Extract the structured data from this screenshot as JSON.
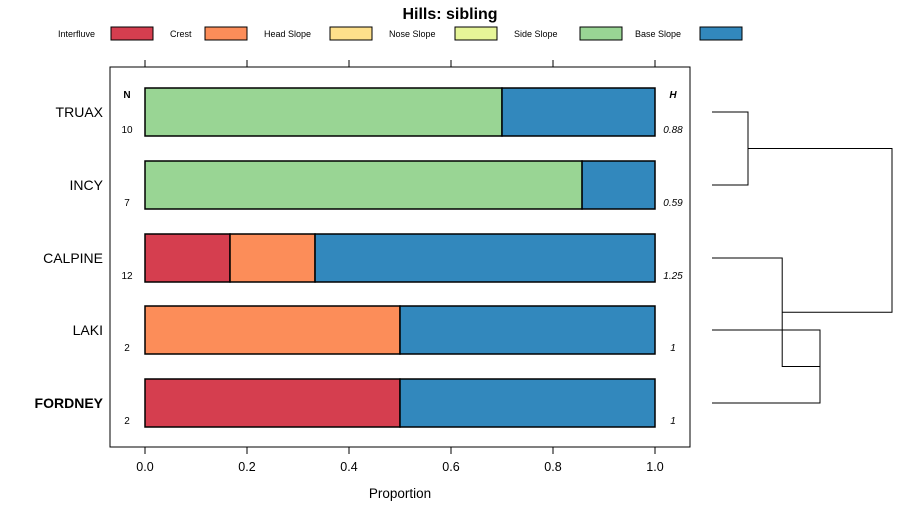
{
  "chart_data": {
    "type": "bar",
    "orientation": "horizontal",
    "stacked": true,
    "title": "Hills: sibling",
    "xlabel": "Proportion",
    "ylabel": "",
    "xlim": [
      0,
      1
    ],
    "xticks": [
      "0.0",
      "0.2",
      "0.4",
      "0.6",
      "0.8",
      "1.0"
    ],
    "categories": [
      "TRUAX",
      "INCY",
      "CALPINE",
      "LAKI",
      "FORDNEY"
    ],
    "highlight_category": "FORDNEY",
    "series": [
      {
        "name": "Interfluve",
        "color": "#D53E4F",
        "values": [
          0,
          0,
          0.1667,
          0,
          0.5
        ]
      },
      {
        "name": "Crest",
        "color": "#FC8D59",
        "values": [
          0,
          0,
          0.1667,
          0.5,
          0
        ]
      },
      {
        "name": "Head Slope",
        "color": "#FEE08B",
        "values": [
          0,
          0,
          0,
          0,
          0
        ]
      },
      {
        "name": "Nose Slope",
        "color": "#E6F598",
        "values": [
          0,
          0,
          0,
          0,
          0
        ]
      },
      {
        "name": "Side Slope",
        "color": "#99D594",
        "values": [
          0.7,
          0.857,
          0,
          0,
          0
        ]
      },
      {
        "name": "Base Slope",
        "color": "#3288BD",
        "values": [
          0.3,
          0.143,
          0.6667,
          0.5,
          0.5
        ]
      }
    ],
    "n_header": "N",
    "h_header": "H",
    "n_values": [
      "10",
      "7",
      "12",
      "2",
      "2"
    ],
    "h_values": [
      "0.88",
      "0.59",
      "1.25",
      "1",
      "1"
    ],
    "legend_position": "top",
    "dendrogram": {
      "side": "right",
      "merges": [
        {
          "left": "TRUAX",
          "right": "INCY",
          "height": 0.2
        },
        {
          "left": "LAKI",
          "right": "FORDNEY",
          "height": 0.6
        },
        {
          "left": "CALPINE",
          "right": "LAKI+FORDNEY",
          "height": 0.39
        },
        {
          "left": "TRUAX+INCY",
          "right": "CALPINE+LAKI+FORDNEY",
          "height": 1.0
        }
      ]
    }
  }
}
